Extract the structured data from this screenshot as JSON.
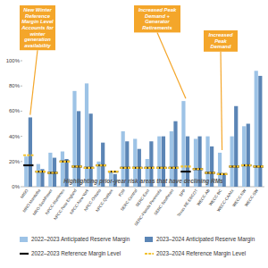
{
  "chart_data": {
    "type": "bar",
    "categories": [
      "MISO",
      "MRO-Manitoba",
      "MRO-SaskPower",
      "NPCC-Maritimes",
      "NPCC-New England",
      "NPCC-New York",
      "NPCC-Ontario",
      "NPCC-Québec",
      "PJM",
      "SERC-Central",
      "SERC-East",
      "SERC-Florida Peninsula",
      "SERC-Southeast",
      "SPP",
      "Texas RE-ERCOT",
      "WECC-AB",
      "WECC-BC",
      "WECC-CA/MX",
      "WECC-NW",
      "WECC-SW"
    ],
    "series": [
      {
        "name": "2022–2023 Anticipated Reserve Margin",
        "type": "bar",
        "color": "#9dc3e6",
        "values": [
          24,
          18,
          27,
          28,
          76,
          82,
          20,
          12,
          44,
          38,
          22,
          40,
          44,
          68,
          38,
          40,
          27,
          40,
          48,
          92
        ]
      },
      {
        "name": "2023–2024 Anticipated Reserve Margin",
        "type": "bar",
        "color": "#5b85b5",
        "values": [
          55,
          14,
          23,
          22,
          60,
          58,
          35,
          10,
          36,
          30,
          36,
          40,
          52,
          40,
          40,
          32,
          10,
          64,
          50,
          88
        ]
      },
      {
        "name": "2022–2023 Reference Margin Level",
        "type": "line",
        "color": "#111111",
        "marker": "hline",
        "line_style": "solid",
        "values": [
          17,
          12,
          11,
          20,
          16,
          15,
          17,
          12,
          15,
          15,
          15,
          15,
          15,
          12,
          14,
          11,
          10,
          16,
          17,
          16
        ]
      },
      {
        "name": "2023–2024 Reference Margin Level",
        "type": "line",
        "color": "#f2c230",
        "marker": "hline",
        "line_style": "dashed",
        "values": [
          25,
          12,
          11,
          20,
          16,
          15,
          17,
          12,
          15,
          15,
          15,
          15,
          15,
          16,
          14,
          11,
          10,
          16,
          17,
          16
        ]
      }
    ],
    "ylim": [
      0,
      100
    ],
    "yticks": [
      {
        "value": 0,
        "label": "0%"
      },
      {
        "value": 20,
        "label": "20%"
      },
      {
        "value": 40,
        "label": "40%"
      },
      {
        "value": 60,
        "label": "60%"
      },
      {
        "value": 80,
        "label": "80%"
      },
      {
        "value": 100,
        "label": "100%"
      }
    ],
    "grid": false,
    "legend": "bottom",
    "annotations": [
      {
        "text": "New Winter Reference Margin Level Accounts for winter generation availability"
      },
      {
        "text": "Increased Peak Demand + Generator Retirements"
      },
      {
        "text": "Increased Peak Demand"
      },
      {
        "text": "Highlighting prior-year risk areas that have declining RMs"
      }
    ]
  }
}
